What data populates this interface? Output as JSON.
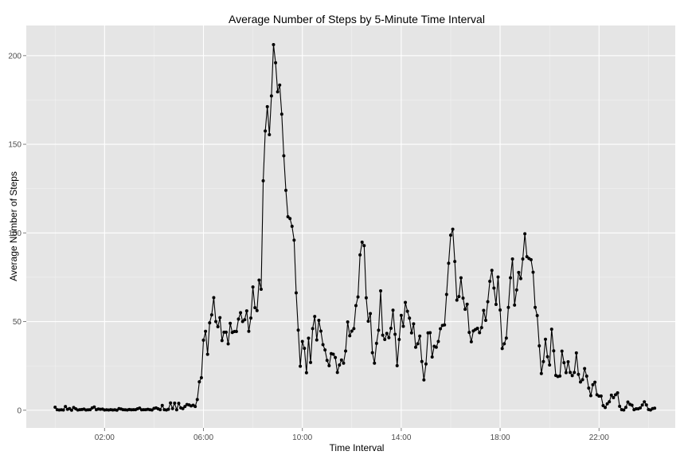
{
  "chart_data": {
    "type": "line",
    "title": "Average Number of Steps by 5-Minute Time Interval",
    "xlabel": "Time Interval",
    "ylabel": "Average Number of Steps",
    "xlim": [
      -70,
      1505
    ],
    "ylim": [
      -10,
      217
    ],
    "xticks": [
      {
        "value": 120,
        "label": "02:00"
      },
      {
        "value": 360,
        "label": "06:00"
      },
      {
        "value": 600,
        "label": "10:00"
      },
      {
        "value": 840,
        "label": "14:00"
      },
      {
        "value": 1080,
        "label": "18:00"
      },
      {
        "value": 1320,
        "label": "22:00"
      }
    ],
    "yticks": [
      {
        "value": 0,
        "label": "0"
      },
      {
        "value": 50,
        "label": "50"
      },
      {
        "value": 100,
        "label": "100"
      },
      {
        "value": 150,
        "label": "150"
      },
      {
        "value": 200,
        "label": "200"
      }
    ],
    "grid": true,
    "background": "#e5e5e5",
    "grid_color": "#ffffff",
    "line_color": "#000000",
    "series": [
      {
        "x_step_minutes": 5,
        "x_start_minutes": 0,
        "values": [
          1.7,
          0.3,
          0.1,
          0.2,
          0.1,
          2.1,
          0.5,
          0.9,
          0.0,
          1.5,
          0.8,
          0.1,
          0.3,
          0.4,
          0.6,
          0.1,
          0.2,
          0.3,
          1.3,
          1.8,
          0.3,
          0.7,
          0.5,
          0.6,
          0.1,
          0.2,
          0.1,
          0.3,
          0.1,
          0.2,
          0.0,
          0.9,
          0.7,
          0.3,
          0.2,
          0.1,
          0.4,
          0.2,
          0.3,
          0.3,
          0.8,
          1.2,
          0.2,
          0.3,
          0.3,
          0.5,
          0.3,
          0.1,
          1.0,
          1.3,
          0.8,
          0.3,
          2.7,
          0.3,
          0.1,
          0.5,
          4.1,
          0.9,
          4.0,
          0.2,
          3.9,
          1.3,
          0.9,
          2.1,
          3.2,
          3.0,
          2.4,
          2.8,
          2.1,
          6.0,
          16.0,
          18.3,
          39.5,
          44.5,
          31.5,
          49.3,
          53.8,
          63.5,
          50.0,
          47.1,
          52.2,
          39.3,
          44.0,
          44.0,
          37.4,
          49.0,
          43.8,
          44.4,
          44.4,
          51.4,
          55.0,
          50.0,
          51.0,
          56.0,
          44.5,
          52.0,
          69.5,
          57.8,
          56.2,
          73.4,
          68.2,
          129.4,
          157.5,
          171.2,
          155.4,
          177.3,
          206.2,
          196.0,
          179.6,
          183.4,
          167.0,
          143.5,
          124.0,
          109.1,
          108.1,
          103.7,
          95.9,
          66.2,
          45.2,
          24.8,
          38.8,
          34.9,
          21.1,
          40.6,
          26.9,
          46.0,
          52.9,
          39.6,
          50.7,
          44.6,
          37.0,
          34.0,
          28.1,
          25.1,
          31.9,
          31.6,
          29.7,
          21.3,
          25.5,
          28.3,
          26.5,
          33.4,
          49.8,
          42.0,
          44.6,
          46.0,
          59.0,
          63.9,
          87.6,
          94.8,
          92.8,
          63.4,
          50.2,
          54.5,
          32.4,
          26.5,
          37.7,
          45.1,
          67.3,
          42.3,
          39.9,
          43.3,
          40.9,
          46.2,
          56.4,
          42.8,
          25.1,
          39.9,
          53.5,
          47.3,
          60.8,
          55.8,
          51.9,
          43.6,
          48.7,
          35.5,
          37.5,
          41.8,
          27.5,
          17.1,
          26.1,
          43.6,
          43.7,
          30.0,
          36.1,
          35.5,
          38.8,
          45.96,
          47.8,
          48.1,
          65.3,
          82.9,
          98.7,
          102.1,
          83.9,
          62.1,
          64.1,
          74.7,
          63.2,
          56.9,
          59.8,
          43.9,
          38.6,
          44.7,
          45.5,
          46.2,
          43.7,
          46.6,
          56.3,
          50.7,
          61.2,
          72.7,
          78.9,
          68.9,
          59.7,
          75.1,
          56.5,
          34.8,
          37.5,
          40.7,
          58.0,
          74.7,
          85.3,
          59.3,
          67.8,
          77.7,
          74.2,
          85.3,
          99.5,
          86.6,
          85.6,
          84.9,
          77.8,
          58.0,
          53.4,
          36.3,
          20.7,
          27.4,
          40.0,
          30.2,
          25.5,
          45.7,
          33.5,
          19.6,
          19.0,
          19.3,
          33.3,
          26.8,
          21.2,
          27.3,
          21.3,
          19.5,
          21.3,
          32.3,
          20.2,
          15.9,
          17.2,
          23.5,
          19.2,
          12.5,
          8.2,
          14.4,
          15.8,
          8.7,
          7.9,
          8.0,
          2.6,
          1.5,
          3.6,
          4.8,
          8.5,
          7.1,
          8.7,
          9.8,
          2.2,
          0.3,
          0.1,
          1.6,
          4.6,
          3.3,
          2.8,
          0.3,
          0.8,
          0.8,
          1.3,
          2.9,
          4.7,
          3.0,
          0.4,
          0.1,
          0.9,
          1.1
        ]
      }
    ]
  }
}
